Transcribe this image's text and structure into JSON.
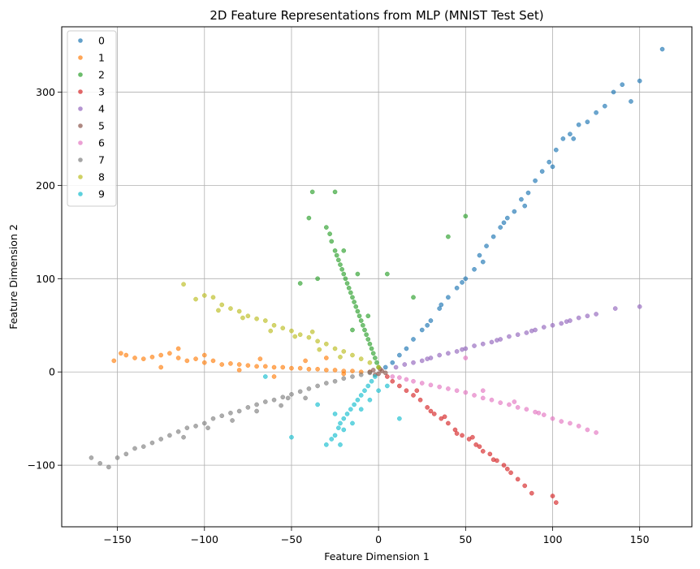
{
  "chart_data": {
    "type": "scatter",
    "title": "2D Feature Representations from MLP (MNIST Test Set)",
    "xlabel": "Feature Dimension 1",
    "ylabel": "Feature Dimension 2",
    "xlim": [
      -182,
      180
    ],
    "ylim": [
      -166,
      370
    ],
    "xticks": [
      -150,
      -100,
      -50,
      0,
      50,
      100,
      150
    ],
    "yticks": [
      -100,
      0,
      100,
      200,
      300
    ],
    "grid": true,
    "legend_position": "top-left",
    "series": [
      {
        "name": "0",
        "color": "#1f77b4",
        "points": [
          [
            4,
            5
          ],
          [
            8,
            10
          ],
          [
            12,
            18
          ],
          [
            16,
            25
          ],
          [
            20,
            35
          ],
          [
            25,
            45
          ],
          [
            30,
            55
          ],
          [
            35,
            68
          ],
          [
            40,
            80
          ],
          [
            45,
            90
          ],
          [
            50,
            100
          ],
          [
            55,
            110
          ],
          [
            58,
            125
          ],
          [
            62,
            135
          ],
          [
            66,
            145
          ],
          [
            70,
            155
          ],
          [
            74,
            165
          ],
          [
            78,
            172
          ],
          [
            82,
            185
          ],
          [
            86,
            192
          ],
          [
            90,
            205
          ],
          [
            94,
            215
          ],
          [
            98,
            225
          ],
          [
            102,
            238
          ],
          [
            106,
            250
          ],
          [
            110,
            255
          ],
          [
            115,
            265
          ],
          [
            120,
            268
          ],
          [
            125,
            278
          ],
          [
            130,
            285
          ],
          [
            135,
            300
          ],
          [
            140,
            308
          ],
          [
            145,
            290
          ],
          [
            150,
            312
          ],
          [
            163,
            346
          ],
          [
            60,
            118
          ],
          [
            72,
            160
          ],
          [
            84,
            178
          ],
          [
            100,
            220
          ],
          [
            112,
            250
          ],
          [
            48,
            96
          ],
          [
            36,
            72
          ],
          [
            28,
            50
          ]
        ]
      },
      {
        "name": "1",
        "color": "#ff7f0e",
        "points": [
          [
            -152,
            12
          ],
          [
            -148,
            20
          ],
          [
            -145,
            18
          ],
          [
            -140,
            15
          ],
          [
            -135,
            14
          ],
          [
            -130,
            16
          ],
          [
            -125,
            18
          ],
          [
            -120,
            20
          ],
          [
            -115,
            15
          ],
          [
            -110,
            12
          ],
          [
            -105,
            14
          ],
          [
            -100,
            10
          ],
          [
            -95,
            12
          ],
          [
            -90,
            8
          ],
          [
            -85,
            9
          ],
          [
            -80,
            8
          ],
          [
            -75,
            7
          ],
          [
            -70,
            6
          ],
          [
            -65,
            6
          ],
          [
            -60,
            5
          ],
          [
            -55,
            5
          ],
          [
            -50,
            4
          ],
          [
            -45,
            4
          ],
          [
            -40,
            3
          ],
          [
            -35,
            3
          ],
          [
            -30,
            2
          ],
          [
            -25,
            2
          ],
          [
            -20,
            1
          ],
          [
            -15,
            1
          ],
          [
            -10,
            0
          ],
          [
            -5,
            0
          ],
          [
            -125,
            5
          ],
          [
            -115,
            25
          ],
          [
            -100,
            18
          ],
          [
            -80,
            2
          ],
          [
            -68,
            14
          ],
          [
            -60,
            -5
          ],
          [
            -42,
            12
          ],
          [
            -30,
            15
          ],
          [
            -20,
            -2
          ]
        ]
      },
      {
        "name": "2",
        "color": "#2ca02c",
        "points": [
          [
            -38,
            193
          ],
          [
            -25,
            193
          ],
          [
            -40,
            165
          ],
          [
            -30,
            155
          ],
          [
            -28,
            148
          ],
          [
            -27,
            140
          ],
          [
            -25,
            130
          ],
          [
            -24,
            125
          ],
          [
            -23,
            120
          ],
          [
            -22,
            115
          ],
          [
            -21,
            110
          ],
          [
            -20,
            105
          ],
          [
            -19,
            100
          ],
          [
            -18,
            95
          ],
          [
            -17,
            90
          ],
          [
            -16,
            85
          ],
          [
            -15,
            80
          ],
          [
            -14,
            75
          ],
          [
            -13,
            70
          ],
          [
            -12,
            65
          ],
          [
            -11,
            60
          ],
          [
            -10,
            55
          ],
          [
            -9,
            50
          ],
          [
            -8,
            45
          ],
          [
            -7,
            40
          ],
          [
            -6,
            35
          ],
          [
            -5,
            30
          ],
          [
            -4,
            25
          ],
          [
            -3,
            20
          ],
          [
            -2,
            15
          ],
          [
            -1,
            10
          ],
          [
            0,
            5
          ],
          [
            -45,
            95
          ],
          [
            -35,
            100
          ],
          [
            5,
            105
          ],
          [
            20,
            80
          ],
          [
            40,
            145
          ],
          [
            50,
            167
          ],
          [
            -12,
            105
          ],
          [
            -20,
            130
          ],
          [
            -6,
            60
          ],
          [
            -15,
            45
          ]
        ]
      },
      {
        "name": "3",
        "color": "#d62728",
        "points": [
          [
            5,
            -5
          ],
          [
            8,
            -10
          ],
          [
            12,
            -15
          ],
          [
            16,
            -20
          ],
          [
            20,
            -25
          ],
          [
            24,
            -30
          ],
          [
            28,
            -38
          ],
          [
            32,
            -45
          ],
          [
            36,
            -50
          ],
          [
            40,
            -55
          ],
          [
            44,
            -62
          ],
          [
            48,
            -68
          ],
          [
            52,
            -72
          ],
          [
            56,
            -78
          ],
          [
            60,
            -85
          ],
          [
            64,
            -88
          ],
          [
            68,
            -95
          ],
          [
            72,
            -100
          ],
          [
            76,
            -108
          ],
          [
            80,
            -115
          ],
          [
            84,
            -122
          ],
          [
            88,
            -130
          ],
          [
            100,
            -133
          ],
          [
            102,
            -140
          ],
          [
            30,
            -42
          ],
          [
            45,
            -66
          ],
          [
            58,
            -80
          ],
          [
            66,
            -94
          ],
          [
            22,
            -20
          ],
          [
            38,
            -48
          ],
          [
            54,
            -70
          ],
          [
            74,
            -104
          ]
        ]
      },
      {
        "name": "4",
        "color": "#9467bd",
        "points": [
          [
            10,
            5
          ],
          [
            15,
            8
          ],
          [
            20,
            10
          ],
          [
            25,
            12
          ],
          [
            30,
            15
          ],
          [
            35,
            18
          ],
          [
            40,
            20
          ],
          [
            45,
            22
          ],
          [
            50,
            25
          ],
          [
            55,
            28
          ],
          [
            60,
            30
          ],
          [
            65,
            32
          ],
          [
            70,
            35
          ],
          [
            75,
            38
          ],
          [
            80,
            40
          ],
          [
            85,
            42
          ],
          [
            90,
            45
          ],
          [
            95,
            48
          ],
          [
            100,
            50
          ],
          [
            105,
            52
          ],
          [
            110,
            55
          ],
          [
            115,
            58
          ],
          [
            120,
            60
          ],
          [
            125,
            62
          ],
          [
            136,
            68
          ],
          [
            150,
            70
          ],
          [
            28,
            14
          ],
          [
            48,
            24
          ],
          [
            68,
            34
          ],
          [
            88,
            44
          ],
          [
            108,
            54
          ]
        ]
      },
      {
        "name": "5",
        "color": "#8c564b",
        "points": [
          [
            -5,
            0
          ],
          [
            -3,
            2
          ],
          [
            0,
            -2
          ],
          [
            2,
            1
          ],
          [
            4,
            -1
          ],
          [
            -2,
            -3
          ],
          [
            1,
            3
          ]
        ]
      },
      {
        "name": "6",
        "color": "#e377c2",
        "points": [
          [
            8,
            -5
          ],
          [
            12,
            -6
          ],
          [
            16,
            -8
          ],
          [
            20,
            -10
          ],
          [
            25,
            -12
          ],
          [
            30,
            -14
          ],
          [
            35,
            -16
          ],
          [
            40,
            -18
          ],
          [
            45,
            -20
          ],
          [
            50,
            -22
          ],
          [
            55,
            -25
          ],
          [
            60,
            -28
          ],
          [
            65,
            -30
          ],
          [
            70,
            -33
          ],
          [
            75,
            -35
          ],
          [
            80,
            -38
          ],
          [
            85,
            -40
          ],
          [
            90,
            -43
          ],
          [
            95,
            -46
          ],
          [
            100,
            -50
          ],
          [
            105,
            -53
          ],
          [
            110,
            -55
          ],
          [
            115,
            -58
          ],
          [
            120,
            -62
          ],
          [
            125,
            -65
          ],
          [
            50,
            15
          ],
          [
            60,
            -20
          ],
          [
            78,
            -32
          ],
          [
            92,
            -44
          ]
        ]
      },
      {
        "name": "7",
        "color": "#7f7f7f",
        "points": [
          [
            -165,
            -92
          ],
          [
            -160,
            -98
          ],
          [
            -155,
            -102
          ],
          [
            -150,
            -92
          ],
          [
            -145,
            -88
          ],
          [
            -140,
            -82
          ],
          [
            -135,
            -80
          ],
          [
            -130,
            -76
          ],
          [
            -125,
            -72
          ],
          [
            -120,
            -68
          ],
          [
            -115,
            -64
          ],
          [
            -110,
            -60
          ],
          [
            -105,
            -58
          ],
          [
            -100,
            -55
          ],
          [
            -95,
            -50
          ],
          [
            -90,
            -47
          ],
          [
            -85,
            -44
          ],
          [
            -80,
            -42
          ],
          [
            -75,
            -38
          ],
          [
            -70,
            -35
          ],
          [
            -65,
            -32
          ],
          [
            -60,
            -30
          ],
          [
            -55,
            -27
          ],
          [
            -50,
            -24
          ],
          [
            -45,
            -21
          ],
          [
            -40,
            -18
          ],
          [
            -35,
            -15
          ],
          [
            -30,
            -12
          ],
          [
            -25,
            -10
          ],
          [
            -20,
            -7
          ],
          [
            -15,
            -5
          ],
          [
            -10,
            -3
          ],
          [
            -5,
            -1
          ],
          [
            -112,
            -70
          ],
          [
            -98,
            -60
          ],
          [
            -84,
            -52
          ],
          [
            -70,
            -42
          ],
          [
            -56,
            -36
          ],
          [
            -42,
            -28
          ],
          [
            -52,
            -28
          ]
        ]
      },
      {
        "name": "8",
        "color": "#bcbd22",
        "points": [
          [
            -112,
            94
          ],
          [
            -100,
            82
          ],
          [
            -95,
            80
          ],
          [
            -105,
            78
          ],
          [
            -90,
            72
          ],
          [
            -85,
            68
          ],
          [
            -80,
            65
          ],
          [
            -75,
            60
          ],
          [
            -70,
            57
          ],
          [
            -65,
            55
          ],
          [
            -60,
            50
          ],
          [
            -55,
            47
          ],
          [
            -50,
            44
          ],
          [
            -45,
            40
          ],
          [
            -40,
            37
          ],
          [
            -35,
            33
          ],
          [
            -30,
            30
          ],
          [
            -25,
            25
          ],
          [
            -20,
            22
          ],
          [
            -15,
            18
          ],
          [
            -10,
            14
          ],
          [
            -5,
            10
          ],
          [
            0,
            5
          ],
          [
            -92,
            66
          ],
          [
            -78,
            58
          ],
          [
            -62,
            44
          ],
          [
            -48,
            38
          ],
          [
            -34,
            24
          ],
          [
            -22,
            16
          ],
          [
            -38,
            43
          ]
        ]
      },
      {
        "name": "9",
        "color": "#17becf",
        "points": [
          [
            -30,
            -78
          ],
          [
            -27,
            -72
          ],
          [
            -25,
            -68
          ],
          [
            -23,
            -60
          ],
          [
            -22,
            -55
          ],
          [
            -20,
            -50
          ],
          [
            -18,
            -45
          ],
          [
            -16,
            -40
          ],
          [
            -14,
            -35
          ],
          [
            -12,
            -30
          ],
          [
            -10,
            -25
          ],
          [
            -8,
            -20
          ],
          [
            -6,
            -15
          ],
          [
            -4,
            -10
          ],
          [
            -2,
            -5
          ],
          [
            -25,
            -45
          ],
          [
            -20,
            -62
          ],
          [
            -15,
            -55
          ],
          [
            -10,
            -40
          ],
          [
            -5,
            -30
          ],
          [
            0,
            -20
          ],
          [
            5,
            -15
          ],
          [
            12,
            -50
          ],
          [
            -50,
            -70
          ],
          [
            -35,
            -35
          ],
          [
            -65,
            -5
          ],
          [
            -22,
            -78
          ]
        ]
      }
    ]
  }
}
